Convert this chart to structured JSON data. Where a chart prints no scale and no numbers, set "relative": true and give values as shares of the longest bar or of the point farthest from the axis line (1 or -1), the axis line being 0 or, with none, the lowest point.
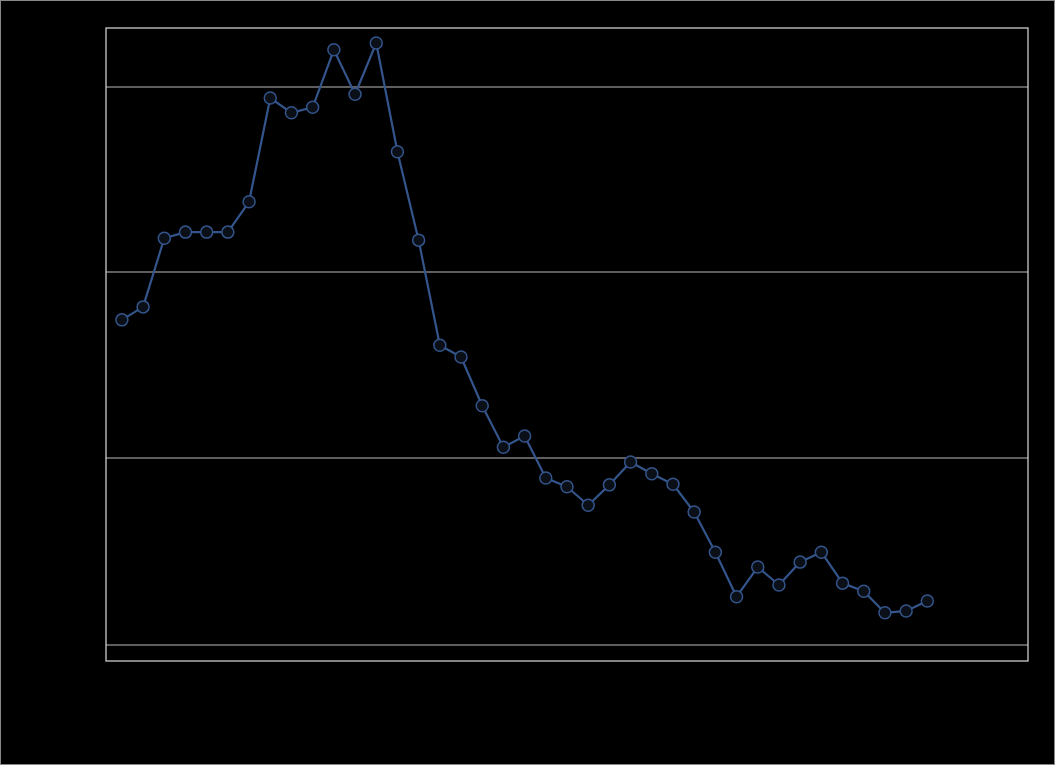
{
  "chart_data": {
    "type": "line",
    "relative": true,
    "grid": true,
    "marker": "circle",
    "line_style": "solid",
    "categories": [
      null,
      null,
      null,
      null,
      null,
      null,
      null,
      null,
      null,
      null,
      null,
      null,
      null,
      null,
      null,
      null,
      null,
      null,
      null,
      null,
      null,
      null,
      null,
      null,
      null,
      null,
      null,
      null,
      null,
      null,
      null,
      null,
      null,
      null,
      null,
      null,
      null,
      null,
      null
    ],
    "series": [
      {
        "color": "#34558b",
        "values": [
          0.552,
          0.573,
          0.684,
          0.694,
          0.694,
          0.694,
          0.743,
          0.911,
          0.887,
          0.896,
          0.989,
          0.917,
          1,
          0.824,
          0.681,
          0.511,
          0.492,
          0.413,
          0.346,
          0.364,
          0.296,
          0.282,
          0.252,
          0.285,
          0.322,
          0.303,
          0.286,
          0.241,
          0.176,
          0.104,
          0.152,
          0.123,
          0.16,
          0.176,
          0.126,
          0.113,
          0.078,
          0.081,
          0.097
        ]
      }
    ]
  }
}
